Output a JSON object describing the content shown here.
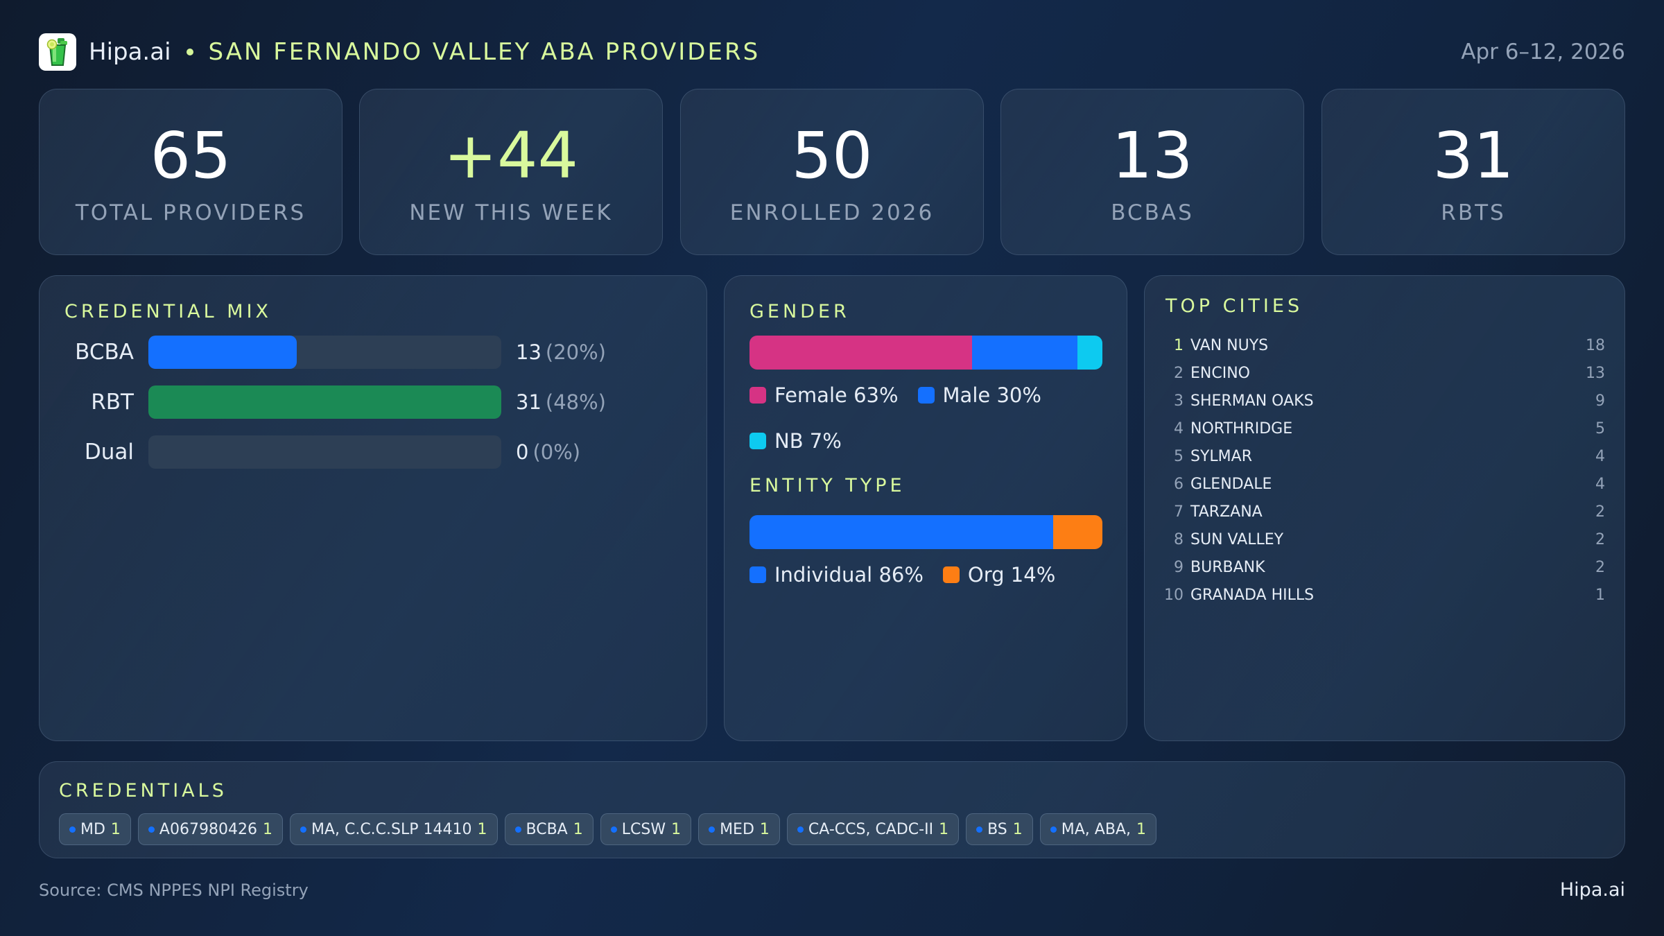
{
  "header": {
    "brand": "Hipa.ai",
    "title": "SAN FERNANDO VALLEY ABA PROVIDERS",
    "date_range": "Apr 6–12, 2026",
    "logo_icon": "mojito-glass-icon"
  },
  "kpis": [
    {
      "value": "65",
      "label": "TOTAL PROVIDERS"
    },
    {
      "value": "+44",
      "label": "NEW THIS WEEK"
    },
    {
      "value": "50",
      "label": "ENROLLED 2026"
    },
    {
      "value": "13",
      "label": "BCBAS"
    },
    {
      "value": "31",
      "label": "RBTS"
    }
  ],
  "credential_mix": {
    "title": "CREDENTIAL MIX",
    "rows": [
      {
        "label": "BCBA",
        "count": "13",
        "pct": "(20%)",
        "fill_pct": 42,
        "color": "#1470ff"
      },
      {
        "label": "RBT",
        "count": "31",
        "pct": "(48%)",
        "fill_pct": 100,
        "color": "#1b8a55"
      },
      {
        "label": "Dual",
        "count": "0",
        "pct": "(0%)",
        "fill_pct": 0,
        "color": "#1470ff"
      }
    ]
  },
  "gender": {
    "title": "GENDER",
    "segments": [
      {
        "label": "Female 63%",
        "pct": 63,
        "color": "#d63384"
      },
      {
        "label": "Male 30%",
        "pct": 30,
        "color": "#1470ff"
      },
      {
        "label": "NB 7%",
        "pct": 7,
        "color": "#0dcaf0"
      }
    ]
  },
  "entity_type": {
    "title": "ENTITY TYPE",
    "segments": [
      {
        "label": "Individual 86%",
        "pct": 86,
        "color": "#1470ff"
      },
      {
        "label": "Org 14%",
        "pct": 14,
        "color": "#fd7e14"
      }
    ]
  },
  "top_cities": {
    "title": "TOP CITIES",
    "items": [
      {
        "rank": "1",
        "name": "VAN NUYS",
        "count": "18"
      },
      {
        "rank": "2",
        "name": "ENCINO",
        "count": "13"
      },
      {
        "rank": "3",
        "name": "SHERMAN OAKS",
        "count": "9"
      },
      {
        "rank": "4",
        "name": "NORTHRIDGE",
        "count": "5"
      },
      {
        "rank": "5",
        "name": "SYLMAR",
        "count": "4"
      },
      {
        "rank": "6",
        "name": "GLENDALE",
        "count": "4"
      },
      {
        "rank": "7",
        "name": "TARZANA",
        "count": "2"
      },
      {
        "rank": "8",
        "name": "SUN VALLEY",
        "count": "2"
      },
      {
        "rank": "9",
        "name": "BURBANK",
        "count": "2"
      },
      {
        "rank": "10",
        "name": "GRANADA HILLS",
        "count": "1"
      }
    ]
  },
  "credentials": {
    "title": "CREDENTIALS",
    "chips": [
      {
        "label": "MD",
        "count": "1"
      },
      {
        "label": "A067980426",
        "count": "1"
      },
      {
        "label": "MA, C.C.C.SLP 14410",
        "count": "1"
      },
      {
        "label": "BCBA",
        "count": "1"
      },
      {
        "label": "LCSW",
        "count": "1"
      },
      {
        "label": "MED",
        "count": "1"
      },
      {
        "label": "CA-CCS, CADC-II",
        "count": "1"
      },
      {
        "label": "BS",
        "count": "1"
      },
      {
        "label": "MA, ABA,",
        "count": "1"
      }
    ]
  },
  "footer": {
    "source": "Source: CMS NPPES NPI Registry",
    "brand": "Hipa.ai"
  },
  "colors": {
    "accent": "#d9f99d",
    "blue": "#1470ff",
    "green": "#1b8a55",
    "pink": "#d63384",
    "cyan": "#0dcaf0",
    "orange": "#fd7e14"
  }
}
